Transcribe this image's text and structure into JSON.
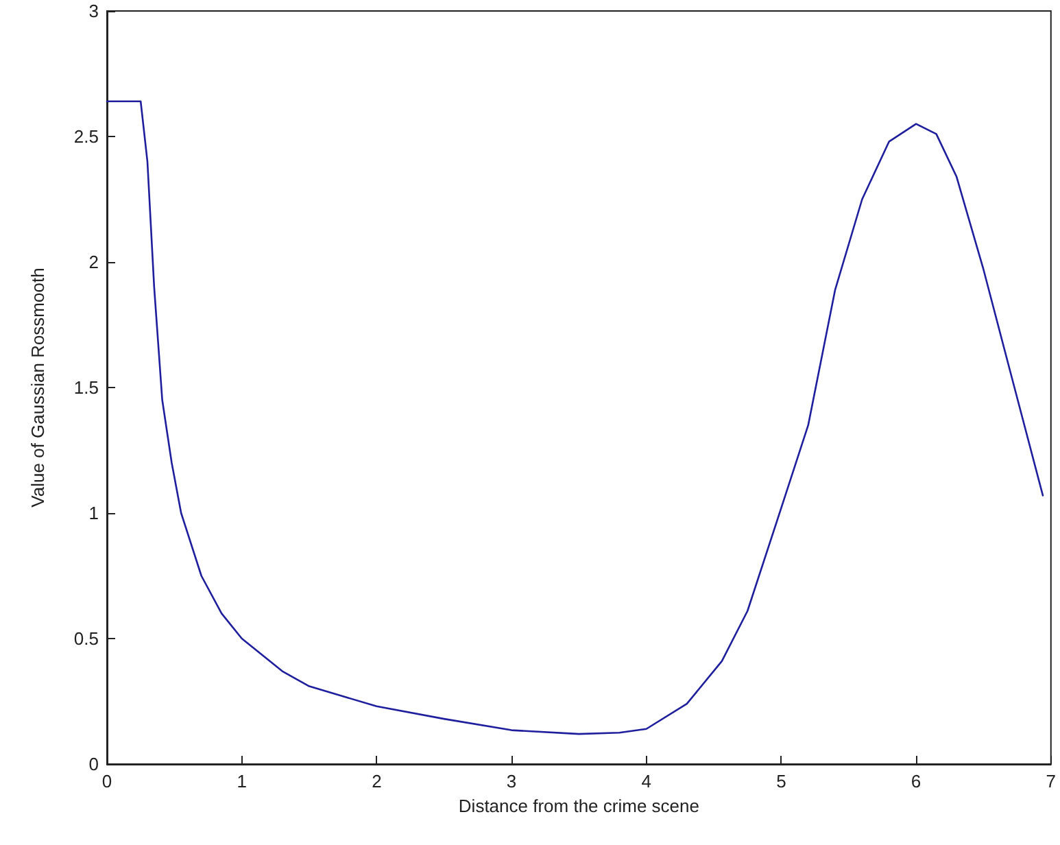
{
  "chart_data": {
    "type": "line",
    "xlabel": "Distance from the crime scene",
    "ylabel": "Value of Gaussian Rossmooth",
    "xlim": [
      0,
      7
    ],
    "xticks": [
      0,
      1,
      2,
      3,
      4,
      5,
      6,
      7
    ],
    "ylim": [
      0,
      3
    ],
    "yticks": [
      0,
      0.5,
      1,
      1.5,
      2,
      2.5,
      3
    ],
    "grid": false,
    "marker": "none",
    "line_style": "solid",
    "series": [
      {
        "color": "#1f1f9e",
        "x": [
          0,
          0.25,
          0.3,
          0.35,
          0.41,
          0.48,
          0.55,
          0.7,
          0.85,
          1.0,
          1.3,
          1.5,
          2.0,
          2.5,
          3.0,
          3.5,
          3.8,
          4.0,
          4.3,
          4.56,
          4.75,
          5.0,
          5.2,
          5.4,
          5.6,
          5.8,
          6.0,
          6.15,
          6.3,
          6.5,
          6.7,
          6.94
        ],
        "values": [
          2.64,
          2.64,
          2.4,
          1.9,
          1.45,
          1.2,
          1.0,
          0.75,
          0.6,
          0.5,
          0.37,
          0.31,
          0.23,
          0.18,
          0.135,
          0.12,
          0.125,
          0.14,
          0.24,
          0.41,
          0.61,
          1.02,
          1.35,
          1.89,
          2.25,
          2.48,
          2.55,
          2.51,
          2.34,
          1.97,
          1.56,
          1.07
        ]
      }
    ]
  }
}
